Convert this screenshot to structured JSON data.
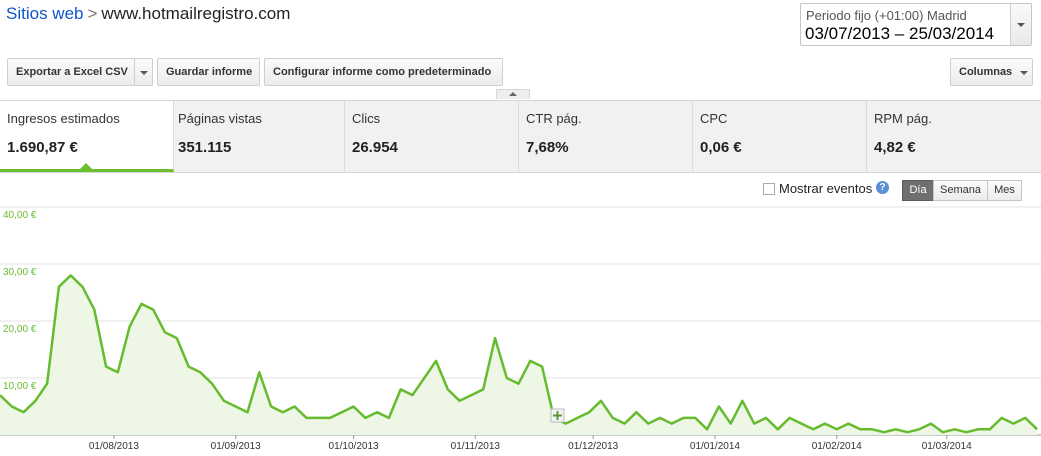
{
  "breadcrumb": {
    "link": "Sitios web",
    "separator": ">",
    "site": "www.hotmailregistro.com"
  },
  "date_range": {
    "label": "Periodo fijo (+01:00) Madrid",
    "value": "03/07/2013 – 25/03/2014"
  },
  "toolbar": [
    "Exportar a Excel CSV",
    "Guardar informe",
    "Configurar informe como predeterminado",
    "Columnas"
  ],
  "metrics": [
    {
      "label": "Ingresos estimados",
      "value": "1.690,87 €"
    },
    {
      "label": "Páginas vistas",
      "value": "351.115"
    },
    {
      "label": "Clics",
      "value": "26.954"
    },
    {
      "label": "CTR pág.",
      "value": "7,68%"
    },
    {
      "label": "CPC",
      "value": "0,06 €"
    },
    {
      "label": "RPM pág.",
      "value": "4,82 €"
    }
  ],
  "options": {
    "events": "Mostrar eventos",
    "help": "?",
    "granularity": [
      "Día",
      "Semana",
      "Mes"
    ]
  },
  "chart_data": {
    "type": "line",
    "color": "#66bb2e",
    "area_color": "#eef7e6",
    "grid": true,
    "x": [
      "03/07/2013",
      "06/07/2013",
      "09/07/2013",
      "12/07/2013",
      "15/07/2013",
      "18/07/2013",
      "21/07/2013",
      "24/07/2013",
      "27/07/2013",
      "30/07/2013",
      "02/08/2013",
      "05/08/2013",
      "08/08/2013",
      "11/08/2013",
      "14/08/2013",
      "17/08/2013",
      "20/08/2013",
      "23/08/2013",
      "26/08/2013",
      "29/08/2013",
      "01/09/2013",
      "04/09/2013",
      "07/09/2013",
      "10/09/2013",
      "13/09/2013",
      "16/09/2013",
      "19/09/2013",
      "22/09/2013",
      "25/09/2013",
      "28/09/2013",
      "01/10/2013",
      "04/10/2013",
      "07/10/2013",
      "10/10/2013",
      "13/10/2013",
      "16/10/2013",
      "19/10/2013",
      "22/10/2013",
      "25/10/2013",
      "28/10/2013",
      "31/10/2013",
      "03/11/2013",
      "06/11/2013",
      "09/11/2013",
      "12/11/2013",
      "15/11/2013",
      "18/11/2013",
      "21/11/2013",
      "24/11/2013",
      "27/11/2013",
      "30/11/2013",
      "03/12/2013",
      "06/12/2013",
      "09/12/2013",
      "12/12/2013",
      "15/12/2013",
      "18/12/2013",
      "21/12/2013",
      "24/12/2013",
      "27/12/2013",
      "30/12/2013",
      "02/01/2014",
      "05/01/2014",
      "08/01/2014",
      "11/01/2014",
      "14/01/2014",
      "17/01/2014",
      "20/01/2014",
      "23/01/2014",
      "26/01/2014",
      "29/01/2014",
      "01/02/2014",
      "04/02/2014",
      "07/02/2014",
      "10/02/2014",
      "13/02/2014",
      "16/02/2014",
      "19/02/2014",
      "22/02/2014",
      "25/02/2014",
      "28/02/2014",
      "03/03/2014",
      "06/03/2014",
      "09/03/2014",
      "12/03/2014",
      "15/03/2014",
      "18/03/2014",
      "21/03/2014",
      "24/03/2014"
    ],
    "values": [
      7,
      5,
      4,
      6,
      9,
      26,
      28,
      26,
      22,
      12,
      11,
      19,
      23,
      22,
      18,
      17,
      12,
      11,
      9,
      6,
      5,
      4,
      11,
      5,
      4,
      5,
      3,
      3,
      3,
      4,
      5,
      3,
      4,
      3,
      8,
      7,
      10,
      13,
      8,
      6,
      7,
      8,
      17,
      10,
      9,
      13,
      12,
      3,
      2,
      3,
      4,
      6,
      3,
      2,
      4,
      2,
      3,
      2,
      3,
      3,
      1,
      5,
      2,
      6,
      2,
      3,
      1,
      3,
      2,
      1,
      2,
      1,
      2,
      1,
      1,
      0.5,
      1,
      0.5,
      1,
      2,
      0.5,
      1,
      0.5,
      1,
      1,
      3,
      2,
      3,
      1
    ],
    "xlim": [
      "03/07/2013",
      "25/03/2014"
    ],
    "xticks": [
      "01/08/2013",
      "01/09/2013",
      "01/10/2013",
      "01/11/2013",
      "01/12/2013",
      "01/01/2014",
      "01/02/2014",
      "01/03/2014"
    ],
    "ylim": [
      0,
      40
    ],
    "yticks": [
      {
        "value": 10,
        "label": "10,00 €"
      },
      {
        "value": 20,
        "label": "20,00 €"
      },
      {
        "value": 30,
        "label": "30,00 €"
      },
      {
        "value": 40,
        "label": "40,00 €"
      }
    ]
  }
}
